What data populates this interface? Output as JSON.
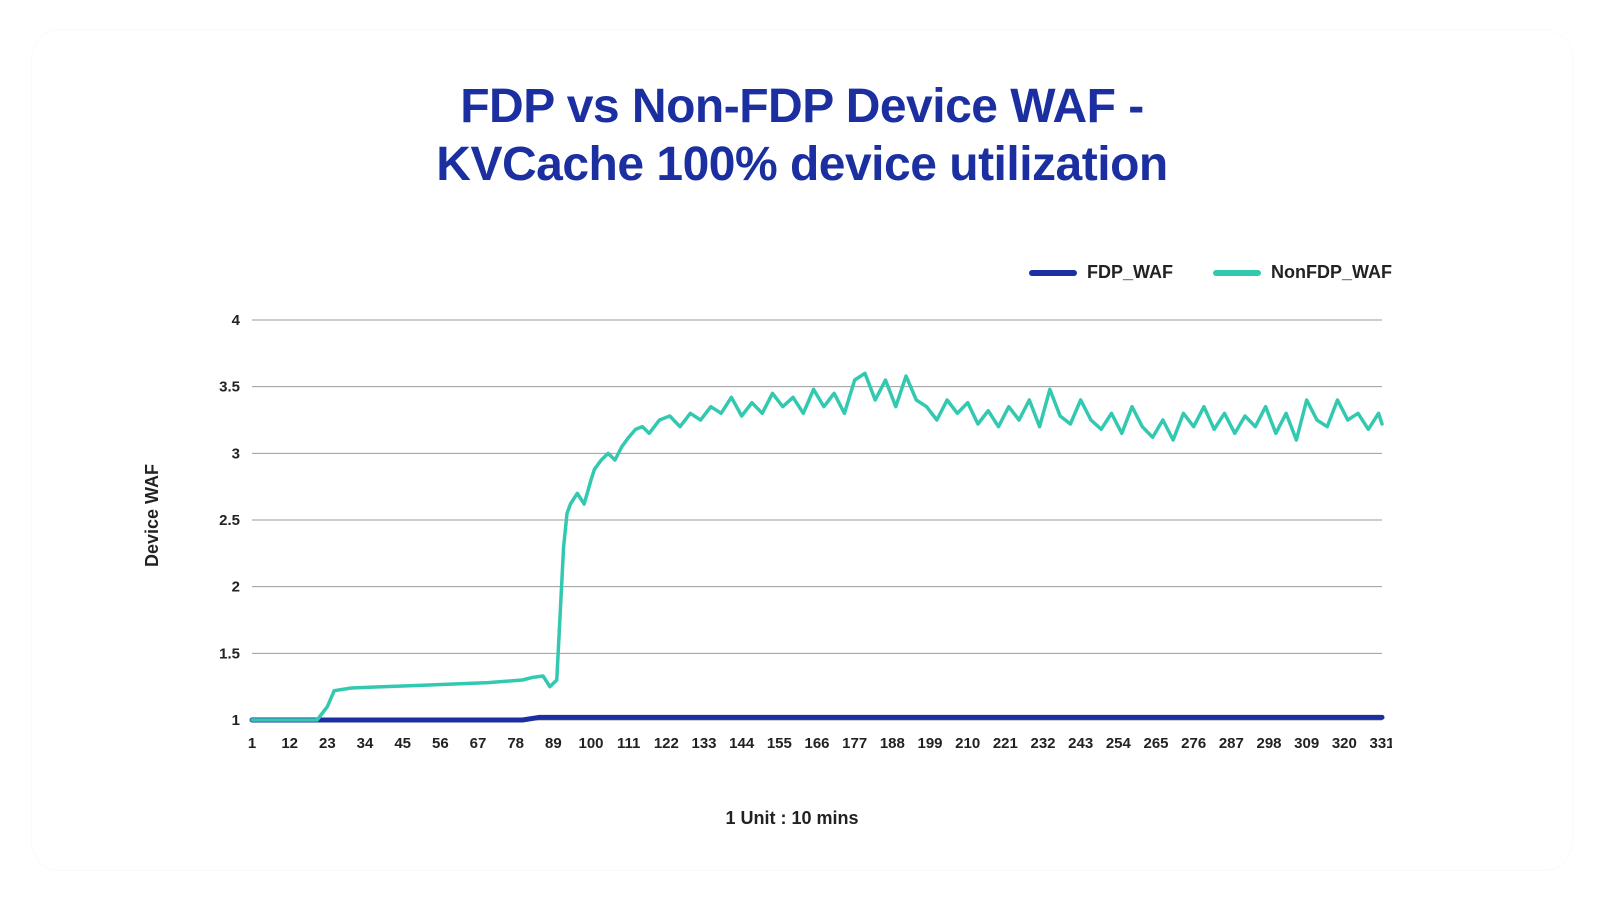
{
  "title_line1": "FDP vs Non-FDP Device WAF -",
  "title_line2": "KVCache 100% device utilization",
  "chart": {
    "type": "line",
    "background_color": "#ffffff",
    "grid_color": "#9b9b9b",
    "grid_stroke_width": 1,
    "axis_color": "#888888",
    "ylabel": "Device WAF",
    "xlabel": "1 Unit : 10 mins",
    "label_fontsize": 18,
    "tick_fontsize": 15,
    "title_color": "#1b2fa0",
    "title_fontsize": 48,
    "xlim": [
      1,
      331
    ],
    "ylim": [
      1,
      4
    ],
    "ytick_step": 0.5,
    "yticks": [
      1,
      1.5,
      2,
      2.5,
      3,
      3.5,
      4
    ],
    "xticks": [
      1,
      12,
      23,
      34,
      45,
      56,
      67,
      78,
      89,
      100,
      111,
      122,
      133,
      144,
      155,
      166,
      177,
      188,
      199,
      210,
      221,
      232,
      243,
      254,
      265,
      276,
      287,
      298,
      309,
      320,
      331
    ],
    "legend": {
      "position": "top-right",
      "items": [
        {
          "label": "FDP_WAF",
          "color": "#1b2fa0"
        },
        {
          "label": "NonFDP_WAF",
          "color": "#33c9b0"
        }
      ]
    },
    "series": [
      {
        "name": "FDP_WAF",
        "color": "#1b2fa0",
        "line_width": 5,
        "x": [
          1,
          80,
          85,
          331
        ],
        "y": [
          1.0,
          1.0,
          1.02,
          1.02
        ]
      },
      {
        "name": "NonFDP_WAF",
        "color": "#33c9b0",
        "line_width": 3.5,
        "x": [
          1,
          20,
          23,
          25,
          30,
          40,
          50,
          60,
          70,
          80,
          83,
          86,
          88,
          90,
          92,
          93,
          94,
          96,
          98,
          100,
          101,
          103,
          105,
          107,
          109,
          111,
          113,
          115,
          117,
          120,
          123,
          126,
          129,
          132,
          135,
          138,
          141,
          144,
          147,
          150,
          153,
          156,
          159,
          162,
          165,
          168,
          171,
          174,
          177,
          180,
          183,
          186,
          189,
          192,
          195,
          198,
          201,
          204,
          207,
          210,
          213,
          216,
          219,
          222,
          225,
          228,
          231,
          234,
          237,
          240,
          243,
          246,
          249,
          252,
          255,
          258,
          261,
          264,
          267,
          270,
          273,
          276,
          279,
          282,
          285,
          288,
          291,
          294,
          297,
          300,
          303,
          306,
          309,
          312,
          315,
          318,
          321,
          324,
          327,
          330,
          331
        ],
        "y": [
          1.0,
          1.0,
          1.1,
          1.22,
          1.24,
          1.25,
          1.26,
          1.27,
          1.28,
          1.3,
          1.32,
          1.33,
          1.25,
          1.3,
          2.3,
          2.55,
          2.62,
          2.7,
          2.62,
          2.8,
          2.88,
          2.95,
          3.0,
          2.95,
          3.05,
          3.12,
          3.18,
          3.2,
          3.15,
          3.25,
          3.28,
          3.2,
          3.3,
          3.25,
          3.35,
          3.3,
          3.42,
          3.28,
          3.38,
          3.3,
          3.45,
          3.35,
          3.42,
          3.3,
          3.48,
          3.35,
          3.45,
          3.3,
          3.55,
          3.6,
          3.4,
          3.55,
          3.35,
          3.58,
          3.4,
          3.35,
          3.25,
          3.4,
          3.3,
          3.38,
          3.22,
          3.32,
          3.2,
          3.35,
          3.25,
          3.4,
          3.2,
          3.48,
          3.28,
          3.22,
          3.4,
          3.25,
          3.18,
          3.3,
          3.15,
          3.35,
          3.2,
          3.12,
          3.25,
          3.1,
          3.3,
          3.2,
          3.35,
          3.18,
          3.3,
          3.15,
          3.28,
          3.2,
          3.35,
          3.15,
          3.3,
          3.1,
          3.4,
          3.25,
          3.2,
          3.4,
          3.25,
          3.3,
          3.18,
          3.3,
          3.22
        ]
      }
    ]
  }
}
